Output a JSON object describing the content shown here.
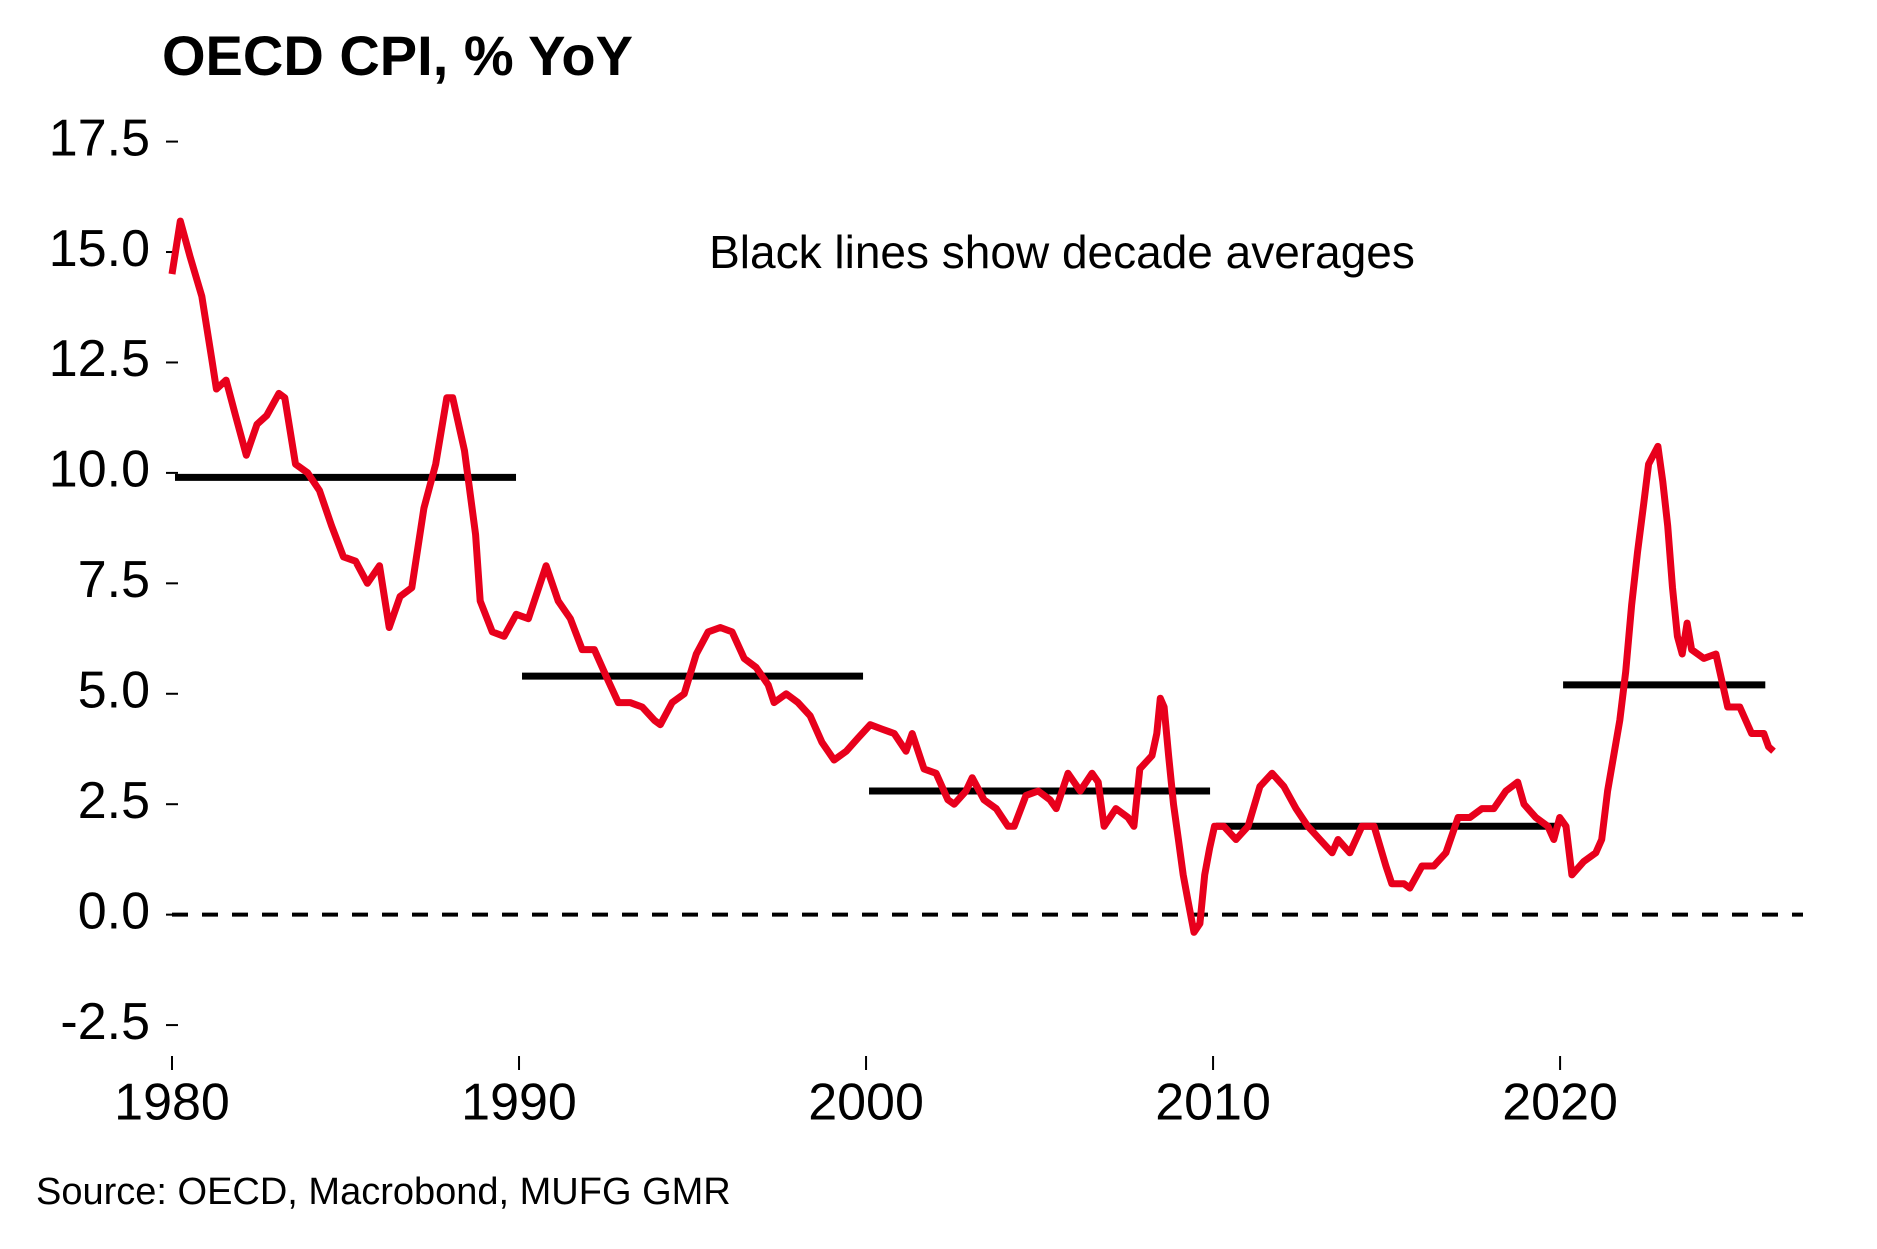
{
  "chart_data": {
    "type": "line",
    "title": "OECD CPI, % YoY",
    "annotation": "Black lines show decade averages",
    "source": "Source: OECD, Macrobond, MUFG GMR",
    "color": "#e8001c",
    "x": [
      1980.0,
      1980.24,
      1980.52,
      1980.86,
      1981.14,
      1981.28,
      1981.56,
      1981.83,
      1982.14,
      1982.45,
      1982.73,
      1983.08,
      1983.25,
      1983.56,
      1983.91,
      1984.25,
      1984.6,
      1984.94,
      1985.29,
      1985.63,
      1985.98,
      1986.26,
      1986.57,
      1986.91,
      1987.26,
      1987.6,
      1987.92,
      1988.09,
      1988.43,
      1988.75,
      1988.88,
      1989.23,
      1989.57,
      1989.92,
      1990.27,
      1990.61,
      1990.78,
      1991.13,
      1991.48,
      1991.82,
      1992.17,
      1992.51,
      1992.86,
      1993.2,
      1993.55,
      1993.9,
      1994.07,
      1994.41,
      1994.76,
      1995.11,
      1995.45,
      1995.8,
      1996.14,
      1996.49,
      1996.83,
      1997.18,
      1997.35,
      1997.7,
      1998.04,
      1998.39,
      1998.73,
      1999.08,
      1999.43,
      1999.77,
      2000.12,
      2000.46,
      2000.81,
      2001.15,
      2001.33,
      2001.67,
      2002.02,
      2002.36,
      2002.54,
      2002.88,
      2003.06,
      2003.4,
      2003.75,
      2004.09,
      2004.27,
      2004.61,
      2004.96,
      2005.3,
      2005.48,
      2005.82,
      2006.17,
      2006.51,
      2006.69,
      2006.86,
      2007.2,
      2007.55,
      2007.72,
      2007.89,
      2008.24,
      2008.38,
      2008.48,
      2008.59,
      2008.72,
      2008.86,
      2009.0,
      2009.14,
      2009.28,
      2009.45,
      2009.62,
      2009.76,
      2009.9,
      2010.04,
      2010.31,
      2010.66,
      2011.01,
      2011.35,
      2011.7,
      2012.04,
      2012.39,
      2012.73,
      2013.08,
      2013.43,
      2013.6,
      2013.94,
      2014.29,
      2014.64,
      2014.98,
      2015.15,
      2015.5,
      2015.67,
      2016.02,
      2016.36,
      2016.71,
      2017.06,
      2017.4,
      2017.75,
      2018.09,
      2018.44,
      2018.78,
      2018.96,
      2019.3,
      2019.65,
      2019.82,
      2019.99,
      2020.17,
      2020.34,
      2020.68,
      2021.03,
      2021.2,
      2021.37,
      2021.72,
      2021.89,
      2022.06,
      2022.23,
      2022.41,
      2022.55,
      2022.82,
      2022.96,
      2023.1,
      2023.24,
      2023.38,
      2023.52,
      2023.66,
      2023.79,
      2024.14,
      2024.49,
      2024.83,
      2025.18,
      2025.52,
      2025.87,
      2026.01,
      2026.15
    ],
    "values": [
      14.5,
      15.7,
      14.9,
      14.0,
      12.6,
      11.9,
      12.1,
      11.3,
      10.4,
      11.1,
      11.3,
      11.8,
      11.7,
      10.2,
      10.0,
      9.6,
      8.8,
      8.1,
      8.0,
      7.5,
      7.9,
      6.5,
      7.2,
      7.4,
      9.2,
      10.2,
      11.7,
      11.7,
      10.5,
      8.6,
      7.1,
      6.4,
      6.3,
      6.8,
      6.7,
      7.5,
      7.9,
      7.1,
      6.7,
      6.0,
      6.0,
      5.4,
      4.8,
      4.8,
      4.7,
      4.4,
      4.3,
      4.8,
      5.0,
      5.9,
      6.4,
      6.5,
      6.4,
      5.8,
      5.6,
      5.2,
      4.8,
      5.0,
      4.8,
      4.5,
      3.9,
      3.5,
      3.7,
      4.0,
      4.3,
      4.2,
      4.1,
      3.7,
      4.1,
      3.3,
      3.2,
      2.6,
      2.5,
      2.8,
      3.1,
      2.6,
      2.4,
      2.0,
      2.0,
      2.7,
      2.8,
      2.6,
      2.4,
      3.2,
      2.8,
      3.2,
      3.0,
      2.0,
      2.4,
      2.2,
      2.0,
      3.3,
      3.6,
      4.1,
      4.9,
      4.7,
      3.6,
      2.5,
      1.7,
      0.9,
      0.3,
      -0.4,
      -0.2,
      0.9,
      1.5,
      2.0,
      2.0,
      1.7,
      2.0,
      2.9,
      3.2,
      2.9,
      2.4,
      2.0,
      1.7,
      1.4,
      1.7,
      1.4,
      2.0,
      2.0,
      1.1,
      0.7,
      0.7,
      0.6,
      1.1,
      1.1,
      1.4,
      2.2,
      2.2,
      2.4,
      2.4,
      2.8,
      3.0,
      2.5,
      2.2,
      2.0,
      1.7,
      2.2,
      2.0,
      0.9,
      1.2,
      1.4,
      1.7,
      2.8,
      4.4,
      5.5,
      7.0,
      8.2,
      9.3,
      10.2,
      10.6,
      9.8,
      8.8,
      7.4,
      6.3,
      5.9,
      6.6,
      6.0,
      5.8,
      5.9,
      4.7,
      4.7,
      4.1,
      4.1,
      3.8,
      3.7
    ],
    "decade_averages": {
      "color": "#000000",
      "segments": [
        {
          "x": [
            1980,
            1990
          ],
          "value": 9.9
        },
        {
          "x": [
            1990,
            2000
          ],
          "value": 5.4
        },
        {
          "x": [
            2000,
            2010
          ],
          "value": 2.8
        },
        {
          "x": [
            2010,
            2020
          ],
          "value": 2.0
        },
        {
          "x": [
            2020,
            2026
          ],
          "value": 5.2
        }
      ]
    },
    "reference_line": 0,
    "xlim": [
      1980,
      2027
    ],
    "ylim": [
      -3.2,
      18
    ],
    "xticks": [
      1980,
      1990,
      2000,
      2010,
      2020
    ],
    "yticks": [
      {
        "value": -2.5,
        "label": "-2.5"
      },
      {
        "value": 0,
        "label": "0.0"
      },
      {
        "value": 2.5,
        "label": "2.5"
      },
      {
        "value": 5,
        "label": "5.0"
      },
      {
        "value": 7.5,
        "label": "7.5"
      },
      {
        "value": 10,
        "label": "10.0"
      },
      {
        "value": 12.5,
        "label": "12.5"
      },
      {
        "value": 15,
        "label": "15.0"
      },
      {
        "value": 17.5,
        "label": "17.5"
      }
    ],
    "grid": false
  }
}
